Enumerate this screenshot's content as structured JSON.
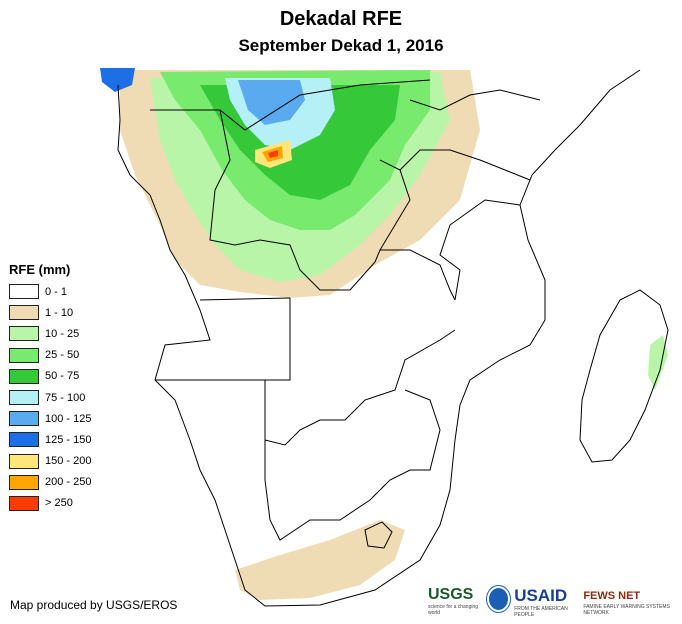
{
  "title": "Dekadal RFE",
  "subtitle": "September Dekad 1, 2016",
  "legend": {
    "title": "RFE (mm)",
    "items": [
      {
        "label": "0 - 1",
        "color": "#ffffff"
      },
      {
        "label": "1 - 10",
        "color": "#f0dcb4"
      },
      {
        "label": "10 - 25",
        "color": "#b9f5a8"
      },
      {
        "label": "25 - 50",
        "color": "#78eb6e"
      },
      {
        "label": "50 - 75",
        "color": "#35c93a"
      },
      {
        "label": "75 - 100",
        "color": "#b4f0f5"
      },
      {
        "label": "100 - 125",
        "color": "#5aaaf0"
      },
      {
        "label": "125 - 150",
        "color": "#1e6ee6"
      },
      {
        "label": "150 - 200",
        "color": "#ffe678"
      },
      {
        "label": "200 - 250",
        "color": "#ffa500"
      },
      {
        "label": "> 250",
        "color": "#ff3c00"
      }
    ]
  },
  "credit": "Map produced by USGS/EROS",
  "logos": {
    "usgs": "USGS",
    "usgs_tagline": "science for a changing world",
    "usaid": "USAID",
    "usaid_tagline": "FROM THE AMERICAN PEOPLE",
    "fews": "FEWS NET",
    "fews_tagline": "FAMINE EARLY WARNING SYSTEMS NETWORK"
  }
}
